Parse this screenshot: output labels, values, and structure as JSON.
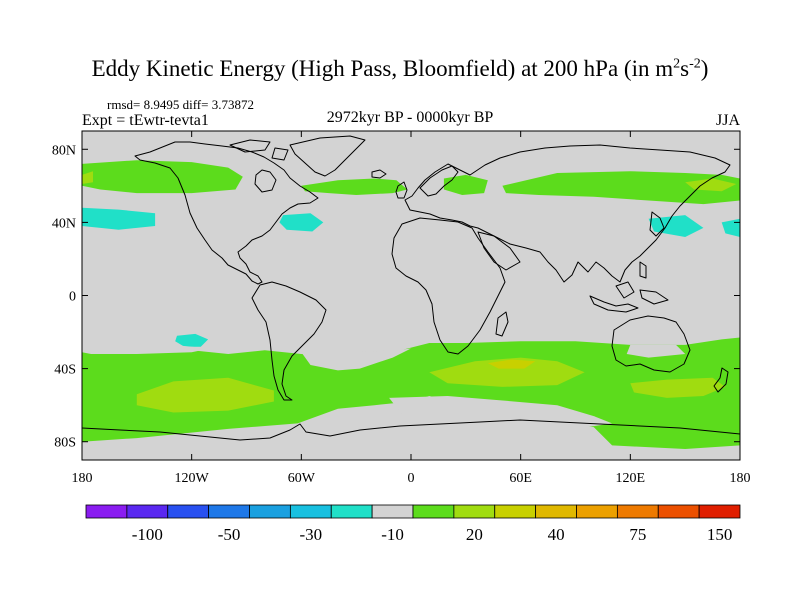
{
  "title": {
    "main": "Eddy Kinetic Energy (High Pass, Bloomfield) at 200 hPa (in m",
    "sup1": "2",
    "mid": "s",
    "sup2": "-2",
    "end": ")"
  },
  "stats": "rmsd= 8.9495 diff= 3.73872",
  "expt": "Expt = tEwtr-tevta1",
  "period": "2972kyr BP - 0000kyr BP",
  "season": "JJA",
  "axes": {
    "x_ticks": [
      {
        "lon": -180,
        "label": "180"
      },
      {
        "lon": -120,
        "label": "120W"
      },
      {
        "lon": -60,
        "label": "60W"
      },
      {
        "lon": 0,
        "label": "0"
      },
      {
        "lon": 60,
        "label": "60E"
      },
      {
        "lon": 120,
        "label": "120E"
      },
      {
        "lon": 180,
        "label": "180"
      }
    ],
    "y_ticks": [
      {
        "lat": 80,
        "label": "80N"
      },
      {
        "lat": 40,
        "label": "40N"
      },
      {
        "lat": 0,
        "label": "0"
      },
      {
        "lat": -40,
        "label": "40S"
      },
      {
        "lat": -80,
        "label": "80S"
      }
    ],
    "lon_range": [
      -180,
      180
    ],
    "lat_range": [
      -90,
      90
    ]
  },
  "colorbar": {
    "colors": [
      "#8a1cf0",
      "#5a28f0",
      "#2850f0",
      "#1e78e8",
      "#1aa0e0",
      "#18c0e0",
      "#20e0c8",
      "#d3d3d3",
      "#5cdc1c",
      "#a0dc10",
      "#c8d000",
      "#e0b800",
      "#eca000",
      "#ee7a00",
      "#ec5000",
      "#e01e00"
    ],
    "labels": [
      {
        "boundary": 2,
        "text": "-100"
      },
      {
        "boundary": 4,
        "text": "-50"
      },
      {
        "boundary": 6,
        "text": "-30"
      },
      {
        "boundary": 8,
        "text": "-10"
      },
      {
        "boundary": 10,
        "text": "20"
      },
      {
        "boundary": 12,
        "text": "40"
      },
      {
        "boundary": 14,
        "text": "75"
      },
      {
        "boundary": 16,
        "text": "150"
      }
    ]
  },
  "field": {
    "background": "#d3d3d3",
    "regions": [
      {
        "level": "green",
        "color": "#5cdc1c",
        "poly": [
          [
            -180,
            72
          ],
          [
            -150,
            74
          ],
          [
            -120,
            73
          ],
          [
            -100,
            70
          ],
          [
            -92,
            65
          ],
          [
            -96,
            58
          ],
          [
            -120,
            56
          ],
          [
            -150,
            56
          ],
          [
            -170,
            58
          ],
          [
            -180,
            60
          ]
        ]
      },
      {
        "level": "green",
        "color": "#5cdc1c",
        "poly": [
          [
            -60,
            60
          ],
          [
            -40,
            63
          ],
          [
            -20,
            64
          ],
          [
            -8,
            63
          ],
          [
            -2,
            58
          ],
          [
            -10,
            56
          ],
          [
            -30,
            55
          ],
          [
            -45,
            56
          ],
          [
            -58,
            57
          ]
        ]
      },
      {
        "level": "green",
        "color": "#5cdc1c",
        "poly": [
          [
            18,
            64
          ],
          [
            30,
            66
          ],
          [
            42,
            63
          ],
          [
            40,
            56
          ],
          [
            28,
            55
          ],
          [
            18,
            58
          ]
        ]
      },
      {
        "level": "green",
        "color": "#5cdc1c",
        "poly": [
          [
            50,
            60
          ],
          [
            80,
            67
          ],
          [
            120,
            68
          ],
          [
            150,
            67
          ],
          [
            170,
            66
          ],
          [
            180,
            64
          ],
          [
            180,
            52
          ],
          [
            160,
            50
          ],
          [
            130,
            52
          ],
          [
            100,
            54
          ],
          [
            70,
            55
          ],
          [
            52,
            56
          ]
        ]
      },
      {
        "level": "yellowgreen",
        "color": "#a0dc10",
        "poly": [
          [
            -180,
            66
          ],
          [
            -174,
            68
          ],
          [
            -174,
            62
          ],
          [
            -180,
            61
          ]
        ]
      },
      {
        "level": "yellowgreen",
        "color": "#a0dc10",
        "poly": [
          [
            150,
            62
          ],
          [
            165,
            64
          ],
          [
            178,
            61
          ],
          [
            170,
            57
          ],
          [
            155,
            58
          ]
        ]
      },
      {
        "level": "cyan",
        "color": "#20e0c8",
        "poly": [
          [
            -180,
            48
          ],
          [
            -160,
            47
          ],
          [
            -140,
            45
          ],
          [
            -140,
            38
          ],
          [
            -160,
            36
          ],
          [
            -180,
            38
          ]
        ]
      },
      {
        "level": "cyan",
        "color": "#20e0c8",
        "poly": [
          [
            -70,
            44
          ],
          [
            -55,
            45
          ],
          [
            -48,
            40
          ],
          [
            -54,
            35
          ],
          [
            -68,
            36
          ],
          [
            -72,
            40
          ]
        ]
      },
      {
        "level": "cyan",
        "color": "#20e0c8",
        "poly": [
          [
            130,
            42
          ],
          [
            150,
            44
          ],
          [
            160,
            37
          ],
          [
            150,
            32
          ],
          [
            133,
            35
          ]
        ]
      },
      {
        "level": "cyan",
        "color": "#20e0c8",
        "poly": [
          [
            170,
            40
          ],
          [
            180,
            42
          ],
          [
            180,
            32
          ],
          [
            172,
            34
          ]
        ]
      },
      {
        "level": "cyan",
        "color": "#20e0c8",
        "poly": [
          [
            -128,
            -22
          ],
          [
            -118,
            -21
          ],
          [
            -111,
            -24
          ],
          [
            -115,
            -28
          ],
          [
            -124,
            -28
          ],
          [
            -129,
            -25
          ]
        ]
      },
      {
        "level": "green",
        "color": "#5cdc1c",
        "poly": [
          [
            -180,
            -26
          ],
          [
            -160,
            -28
          ],
          [
            -140,
            -27
          ],
          [
            -120,
            -30
          ],
          [
            -100,
            -32
          ],
          [
            -80,
            -30
          ],
          [
            -60,
            -32
          ],
          [
            -30,
            -33
          ],
          [
            -10,
            -31
          ],
          [
            10,
            -26
          ],
          [
            30,
            -26
          ],
          [
            60,
            -25
          ],
          [
            90,
            -25
          ],
          [
            120,
            -27
          ],
          [
            150,
            -27
          ],
          [
            170,
            -24
          ],
          [
            180,
            -23
          ],
          [
            180,
            -82
          ],
          [
            150,
            -84
          ],
          [
            110,
            -82
          ],
          [
            100,
            -72
          ],
          [
            80,
            -70
          ],
          [
            60,
            -65
          ],
          [
            30,
            -60
          ],
          [
            10,
            -55
          ],
          [
            0,
            -58
          ],
          [
            -20,
            -60
          ],
          [
            -40,
            -62
          ],
          [
            -62,
            -70
          ],
          [
            -100,
            -73
          ],
          [
            -150,
            -78
          ],
          [
            -180,
            -80
          ]
        ]
      },
      {
        "level": "gray",
        "color": "#d3d3d3",
        "poly": [
          [
            -180,
            -26
          ],
          [
            -168,
            -26
          ],
          [
            -150,
            -25
          ],
          [
            -120,
            -28
          ],
          [
            -110,
            -29
          ],
          [
            -120,
            -31
          ],
          [
            -150,
            -32
          ],
          [
            -175,
            -32
          ],
          [
            -180,
            -31
          ]
        ]
      },
      {
        "level": "gray",
        "color": "#d3d3d3",
        "poly": [
          [
            -60,
            -31
          ],
          [
            -30,
            -31
          ],
          [
            -8,
            -30
          ],
          [
            0,
            -29
          ],
          [
            -10,
            -34
          ],
          [
            -28,
            -40
          ],
          [
            -40,
            -41
          ],
          [
            -55,
            -38
          ]
        ]
      },
      {
        "level": "gray",
        "color": "#d3d3d3",
        "poly": [
          [
            -12,
            -56
          ],
          [
            20,
            -55
          ],
          [
            45,
            -57
          ],
          [
            80,
            -60
          ],
          [
            100,
            -66
          ],
          [
            110,
            -70
          ],
          [
            90,
            -73
          ],
          [
            60,
            -72
          ],
          [
            20,
            -70
          ],
          [
            -5,
            -65
          ]
        ]
      },
      {
        "level": "gray",
        "color": "#d3d3d3",
        "poly": [
          [
            120,
            -27
          ],
          [
            145,
            -27
          ],
          [
            150,
            -32
          ],
          [
            130,
            -34
          ],
          [
            118,
            -32
          ]
        ]
      },
      {
        "level": "yellowgreen",
        "color": "#a0dc10",
        "poly": [
          [
            -150,
            -54
          ],
          [
            -130,
            -47
          ],
          [
            -100,
            -45
          ],
          [
            -75,
            -52
          ],
          [
            -75,
            -58
          ],
          [
            -100,
            -63
          ],
          [
            -130,
            -64
          ],
          [
            -150,
            -60
          ]
        ]
      },
      {
        "level": "yellowgreen",
        "color": "#a0dc10",
        "poly": [
          [
            10,
            -42
          ],
          [
            35,
            -36
          ],
          [
            60,
            -34
          ],
          [
            80,
            -36
          ],
          [
            95,
            -42
          ],
          [
            80,
            -49
          ],
          [
            50,
            -50
          ],
          [
            20,
            -48
          ]
        ]
      },
      {
        "level": "yellow",
        "color": "#c8d000",
        "poly": [
          [
            42,
            -37
          ],
          [
            55,
            -35
          ],
          [
            68,
            -36
          ],
          [
            62,
            -40
          ],
          [
            48,
            -40
          ]
        ]
      },
      {
        "level": "yellowgreen",
        "color": "#a0dc10",
        "poly": [
          [
            120,
            -48
          ],
          [
            140,
            -46
          ],
          [
            165,
            -45
          ],
          [
            172,
            -50
          ],
          [
            160,
            -55
          ],
          [
            140,
            -56
          ],
          [
            122,
            -53
          ]
        ]
      }
    ]
  }
}
